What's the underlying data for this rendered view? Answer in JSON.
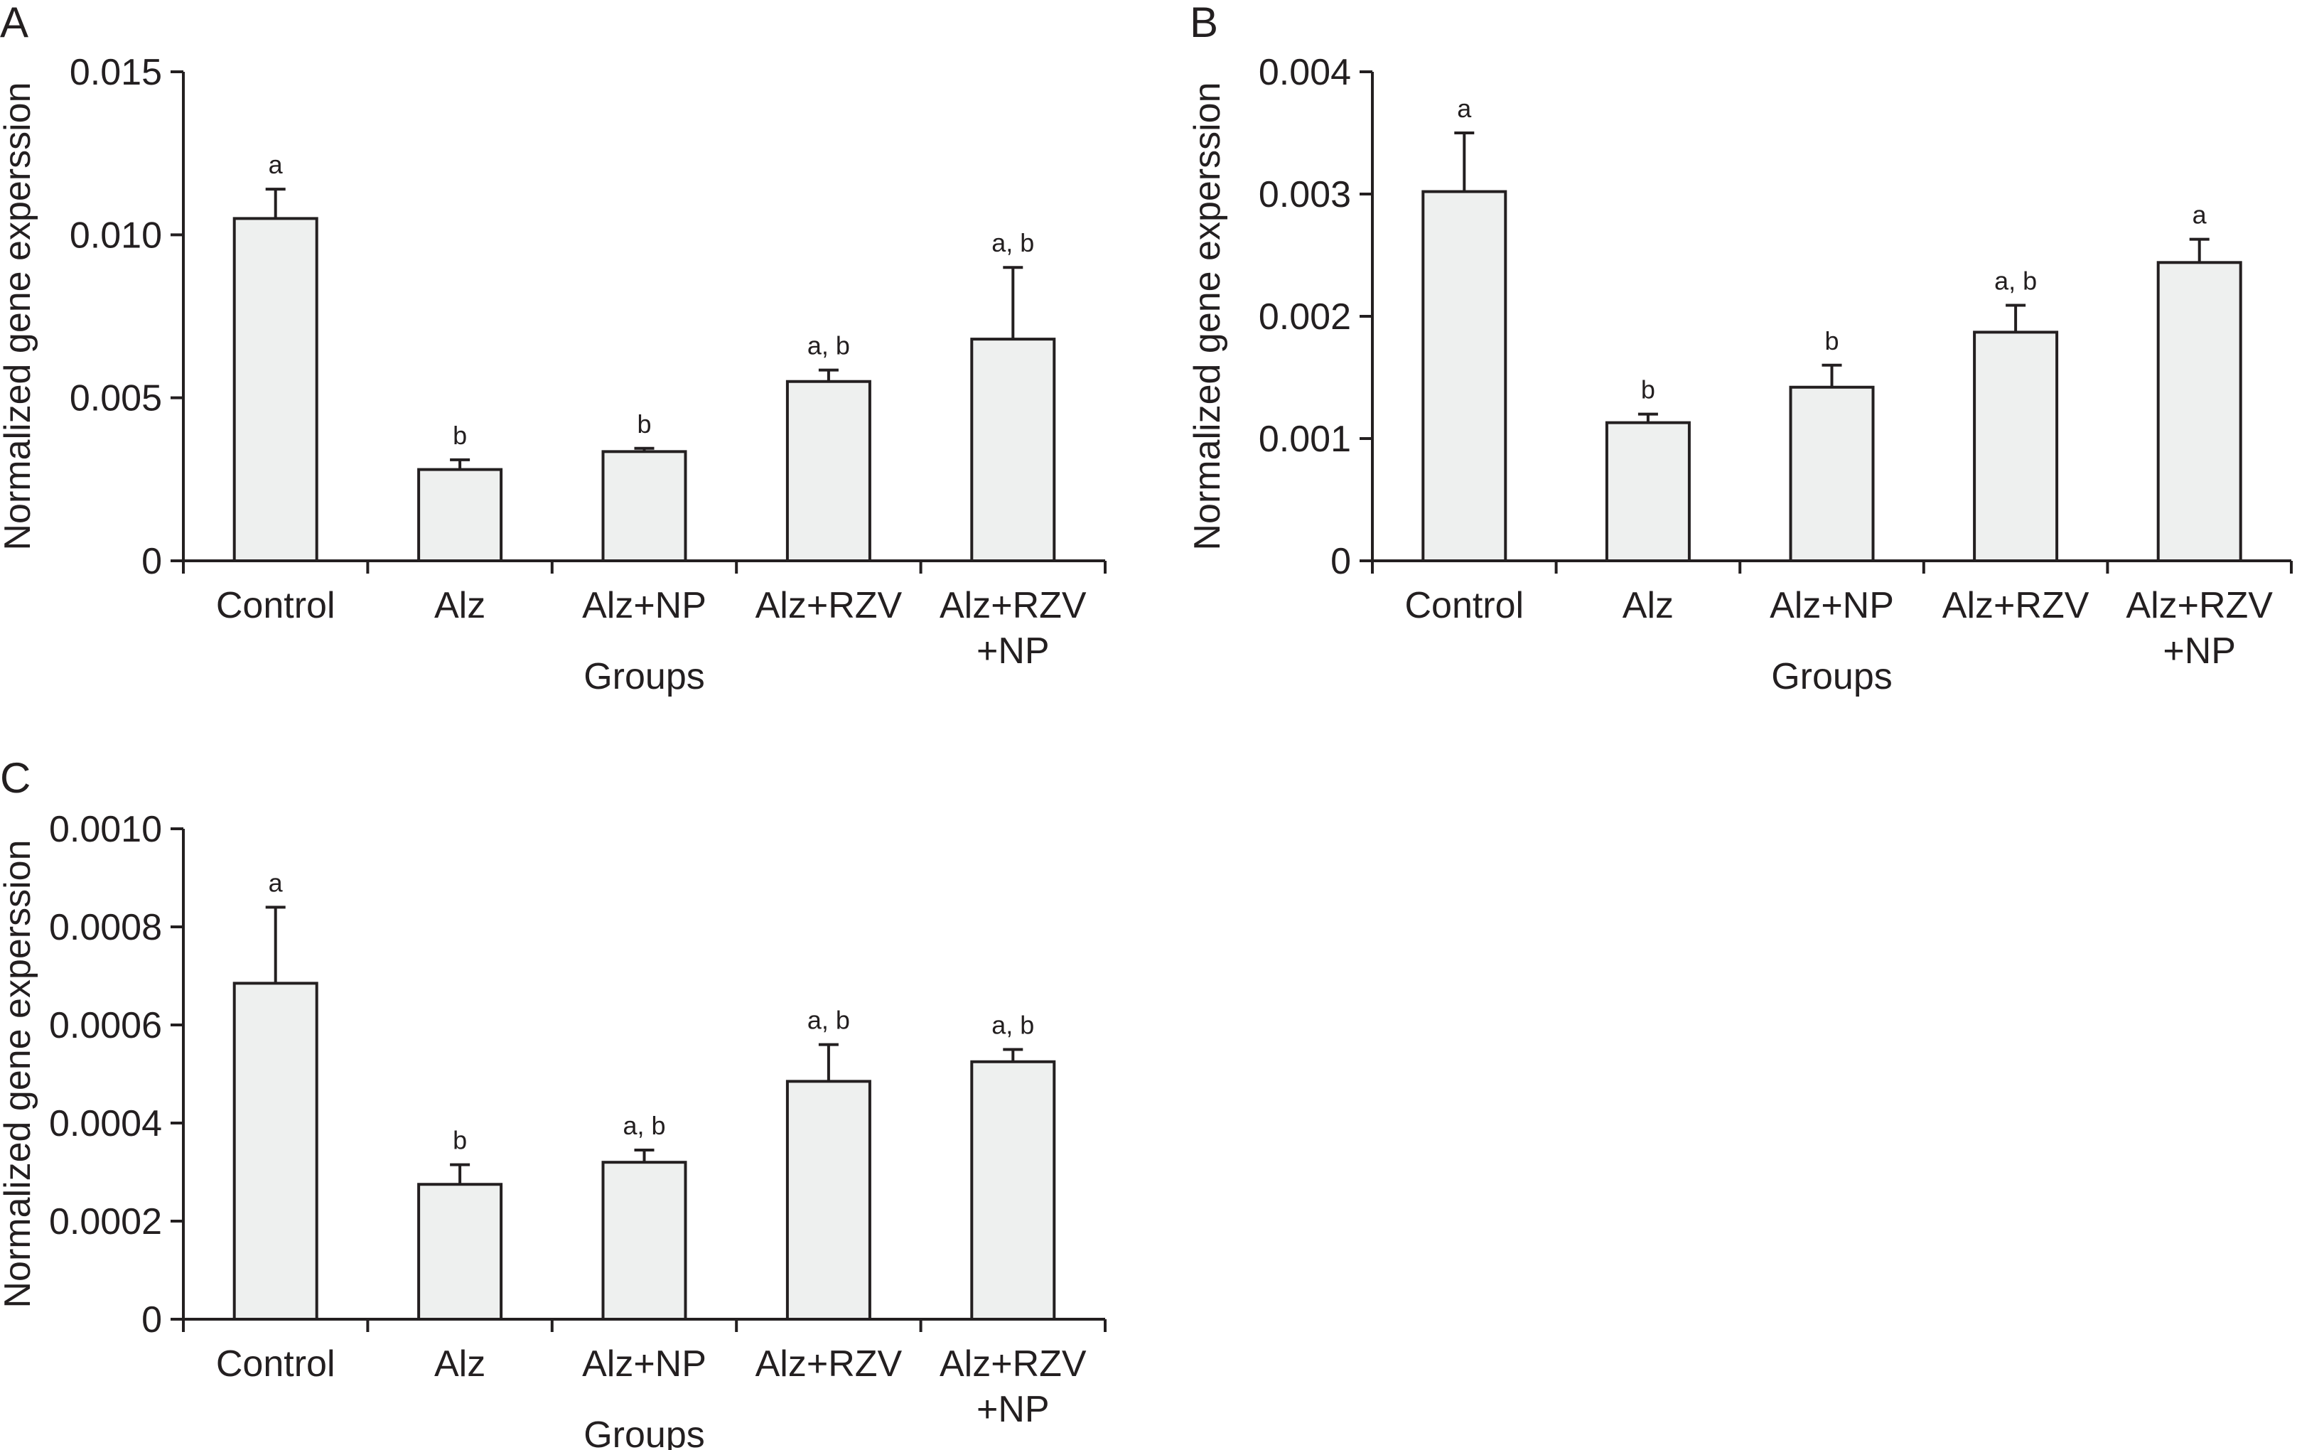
{
  "chart_data": [
    {
      "panel": "A",
      "type": "bar",
      "categories": [
        [
          "Control"
        ],
        [
          "Alz"
        ],
        [
          "Alz+NP"
        ],
        [
          "Alz+RZV"
        ],
        [
          "Alz+RZV",
          "+NP"
        ]
      ],
      "values": [
        0.0105,
        0.0028,
        0.00335,
        0.0055,
        0.0068
      ],
      "errors": [
        0.0009,
        0.0003,
        0.0001,
        0.00035,
        0.0022
      ],
      "significance": [
        "a",
        "b",
        "b",
        "a, b",
        "a, b"
      ],
      "ylim": [
        0,
        0.015
      ],
      "yticks": [
        0,
        0.005,
        0.01,
        0.015
      ],
      "ytick_labels": [
        "0",
        "0.005",
        "0.010",
        "0.015"
      ],
      "xlabel": "Groups",
      "ylabel": "Normalized gene experssion",
      "title": ""
    },
    {
      "panel": "B",
      "type": "bar",
      "categories": [
        [
          "Control"
        ],
        [
          "Alz"
        ],
        [
          "Alz+NP"
        ],
        [
          "Alz+RZV"
        ],
        [
          "Alz+RZV",
          "+NP"
        ]
      ],
      "values": [
        0.00302,
        0.00113,
        0.00142,
        0.00187,
        0.00244
      ],
      "errors": [
        0.00048,
        7e-05,
        0.00018,
        0.00022,
        0.00019
      ],
      "significance": [
        "a",
        "b",
        "b",
        "a, b",
        "a"
      ],
      "ylim": [
        0,
        0.004
      ],
      "yticks": [
        0,
        0.001,
        0.002,
        0.003,
        0.004
      ],
      "ytick_labels": [
        "0",
        "0.001",
        "0.002",
        "0.003",
        "0.004"
      ],
      "xlabel": "Groups",
      "ylabel": "Normalized gene experssion",
      "title": ""
    },
    {
      "panel": "C",
      "type": "bar",
      "categories": [
        [
          "Control"
        ],
        [
          "Alz"
        ],
        [
          "Alz+NP"
        ],
        [
          "Alz+RZV"
        ],
        [
          "Alz+RZV",
          "+NP"
        ]
      ],
      "values": [
        0.000685,
        0.000275,
        0.00032,
        0.000485,
        0.000525
      ],
      "errors": [
        0.000155,
        4e-05,
        2.5e-05,
        7.5e-05,
        2.5e-05
      ],
      "significance": [
        "a",
        "b",
        "a, b",
        "a, b",
        "a, b"
      ],
      "ylim": [
        0,
        0.001
      ],
      "yticks": [
        0,
        0.0002,
        0.0004,
        0.0006,
        0.0008,
        0.001
      ],
      "ytick_labels": [
        "0",
        "0.0002",
        "0.0004",
        "0.0006",
        "0.0008",
        "0.0010"
      ],
      "xlabel": "Groups",
      "ylabel": "Normalized gene experssion",
      "title": ""
    }
  ]
}
